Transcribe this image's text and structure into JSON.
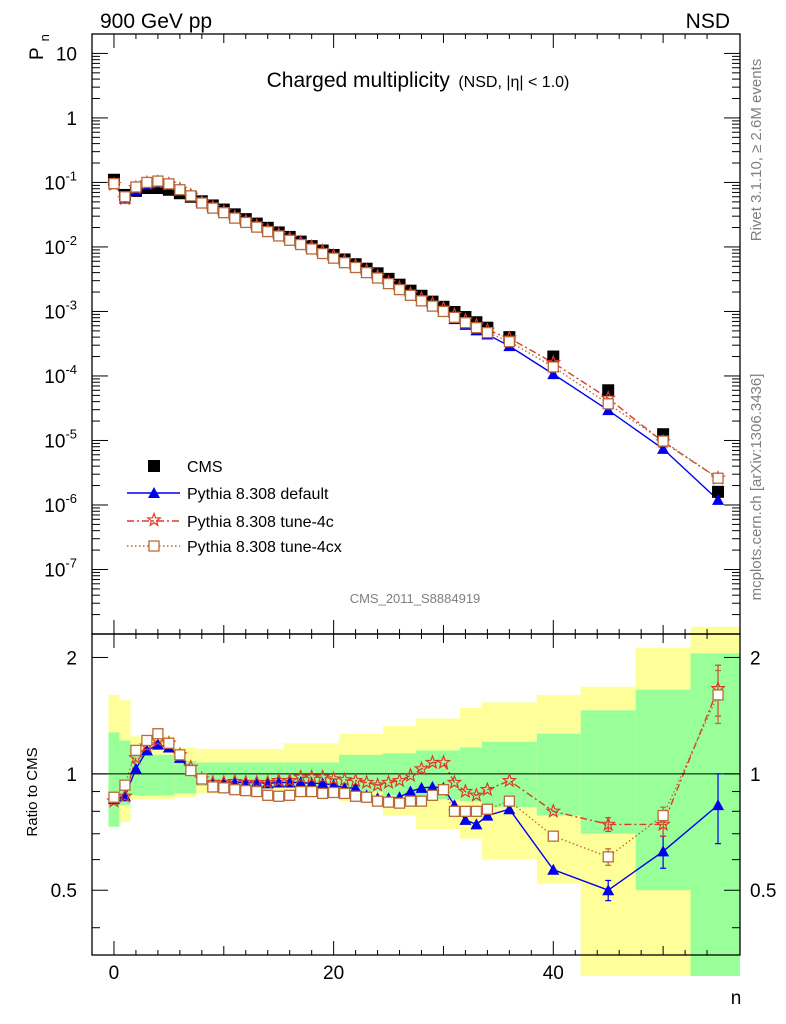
{
  "header": {
    "energy_label": "900 GeV pp",
    "process_label": "NSD",
    "title_main": "Charged multiplicity",
    "title_sub": "(NSD, |η| < 1.0)",
    "rivet_label": "Rivet 3.1.10, ≥ 2.6M events",
    "mcplots_label": "mcplots.cern.ch [arXiv:1306.3436]",
    "analysis_label": "CMS_2011_S8884919"
  },
  "colors": {
    "cms": "#000000",
    "default": "#0000ee",
    "tune4c": "#dd3b2a",
    "tune4cx": "#b86a3a",
    "band_inner": "#99ff99",
    "band_outer": "#ffff99"
  },
  "chart_data": [
    {
      "type": "scatter",
      "scale": "log",
      "ylabel": "P",
      "ylabel_sub": "n",
      "xlim": [
        -2,
        57
      ],
      "ylim": [
        1e-08,
        20
      ],
      "yticks": [
        {
          "v": 1e-07,
          "label": "10",
          "exp": "-7"
        },
        {
          "v": 1e-06,
          "label": "10",
          "exp": "-6"
        },
        {
          "v": 1e-05,
          "label": "10",
          "exp": "-5"
        },
        {
          "v": 0.0001,
          "label": "10",
          "exp": "-4"
        },
        {
          "v": 0.001,
          "label": "10",
          "exp": "-3"
        },
        {
          "v": 0.01,
          "label": "10",
          "exp": "-2"
        },
        {
          "v": 0.1,
          "label": "10",
          "exp": "-1"
        },
        {
          "v": 1,
          "label": "1",
          "exp": ""
        },
        {
          "v": 10,
          "label": "10",
          "exp": ""
        }
      ],
      "legend_position": "bottom-left",
      "series": [
        {
          "name": "CMS",
          "key": "cms",
          "marker": "square",
          "x": [
            0,
            1,
            2,
            3,
            4,
            5,
            6,
            7,
            8,
            9,
            10,
            11,
            12,
            13,
            14,
            15,
            16,
            17,
            18,
            19,
            20,
            21,
            22,
            23,
            24,
            25,
            26,
            27,
            28,
            29,
            30,
            31,
            32,
            33,
            34,
            36,
            40,
            45,
            50,
            55
          ],
          "y": [
            0.11,
            0.064,
            0.074,
            0.082,
            0.082,
            0.077,
            0.068,
            0.06,
            0.051,
            0.044,
            0.038,
            0.032,
            0.027,
            0.023,
            0.0198,
            0.0168,
            0.0143,
            0.0121,
            0.0103,
            0.0088,
            0.0075,
            0.0064,
            0.0054,
            0.0046,
            0.0039,
            0.0032,
            0.0026,
            0.0021,
            0.00175,
            0.00142,
            0.00118,
            0.00098,
            0.00082,
            0.00068,
            0.00056,
            0.0004,
            0.0002,
            6e-05,
            1.25e-05,
            1.6e-06
          ]
        },
        {
          "name": "Pythia 8.308 default",
          "key": "default",
          "marker": "triangle",
          "line": "solid",
          "x": [
            0,
            1,
            2,
            3,
            4,
            5,
            6,
            7,
            8,
            9,
            10,
            11,
            12,
            13,
            14,
            15,
            16,
            17,
            18,
            19,
            20,
            21,
            22,
            23,
            24,
            25,
            26,
            27,
            28,
            29,
            30,
            31,
            32,
            33,
            34,
            36,
            40,
            45,
            50,
            55
          ],
          "y": [
            0.094,
            0.056,
            0.076,
            0.093,
            0.098,
            0.092,
            0.076,
            0.062,
            0.049,
            0.041,
            0.035,
            0.029,
            0.025,
            0.0211,
            0.018,
            0.0153,
            0.0131,
            0.0113,
            0.0096,
            0.0081,
            0.0068,
            0.0057,
            0.0048,
            0.004,
            0.0033,
            0.0027,
            0.00218,
            0.0018,
            0.00148,
            0.0012,
            0.00098,
            0.00076,
            0.00062,
            0.00051,
            0.00044,
            0.00029,
            0.000107,
            2.95e-05,
            7.4e-06,
            1.2e-06
          ]
        },
        {
          "name": "Pythia 8.308 tune-4c",
          "key": "tune4c",
          "marker": "star",
          "line": "dashdot",
          "x": [
            0,
            1,
            2,
            3,
            4,
            5,
            6,
            7,
            8,
            9,
            10,
            11,
            12,
            13,
            14,
            15,
            16,
            17,
            18,
            19,
            20,
            21,
            22,
            23,
            24,
            25,
            26,
            27,
            28,
            29,
            30,
            31,
            32,
            33,
            34,
            36,
            40,
            45,
            50,
            55
          ],
          "y": [
            0.093,
            0.056,
            0.083,
            0.098,
            0.101,
            0.094,
            0.078,
            0.063,
            0.049,
            0.041,
            0.035,
            0.029,
            0.025,
            0.0211,
            0.0182,
            0.0156,
            0.0135,
            0.0117,
            0.01,
            0.0086,
            0.0073,
            0.0061,
            0.0051,
            0.0043,
            0.0035,
            0.0028,
            0.00232,
            0.00188,
            0.0016,
            0.00133,
            0.00112,
            0.00089,
            0.00073,
            0.00061,
            0.00051,
            0.000385,
            0.00016,
            4.5e-05,
            9.5e-06,
            2.6e-06
          ]
        },
        {
          "name": "Pythia 8.308 tune-4cx",
          "key": "tune4cx",
          "marker": "open-square",
          "line": "dotted",
          "x": [
            0,
            1,
            2,
            3,
            4,
            5,
            6,
            7,
            8,
            9,
            10,
            11,
            12,
            13,
            14,
            15,
            16,
            17,
            18,
            19,
            20,
            21,
            22,
            23,
            24,
            25,
            26,
            27,
            28,
            29,
            30,
            31,
            32,
            33,
            34,
            36,
            40,
            45,
            50,
            55
          ],
          "y": [
            0.096,
            0.06,
            0.085,
            0.1,
            0.105,
            0.095,
            0.077,
            0.062,
            0.048,
            0.04,
            0.034,
            0.028,
            0.024,
            0.0203,
            0.0173,
            0.0148,
            0.0127,
            0.0109,
            0.0093,
            0.0079,
            0.0067,
            0.0057,
            0.0048,
            0.004,
            0.0033,
            0.0027,
            0.00218,
            0.00178,
            0.00146,
            0.00121,
            0.001,
            0.00081,
            0.00067,
            0.00056,
            0.00047,
            0.00034,
            0.000138,
            3.7e-05,
            9.8e-06,
            2.6e-06
          ]
        }
      ]
    },
    {
      "type": "line",
      "ylabel": "Ratio to CMS",
      "xlabel": "n",
      "xlim": [
        -2,
        57
      ],
      "ylim": [
        0.34,
        2.3
      ],
      "xticks": [
        0,
        20,
        40
      ],
      "yticks": [
        0.5,
        1,
        2
      ],
      "bands": [
        {
          "x0": -0.5,
          "x1": 0.5,
          "inner": [
            0.73,
            1.28
          ],
          "outer": [
            0.73,
            1.6
          ]
        },
        {
          "x0": 0.5,
          "x1": 1.5,
          "inner": [
            0.83,
            1.22
          ],
          "outer": [
            0.75,
            1.55
          ]
        },
        {
          "x0": 1.5,
          "x1": 5.5,
          "inner": [
            0.88,
            1.12
          ],
          "outer": [
            0.86,
            1.25
          ]
        },
        {
          "x0": 5.5,
          "x1": 7.5,
          "inner": [
            0.89,
            1.08
          ],
          "outer": [
            0.87,
            1.17
          ]
        },
        {
          "x0": 7.5,
          "x1": 15.5,
          "inner": [
            0.93,
            1.07
          ],
          "outer": [
            0.89,
            1.16
          ]
        },
        {
          "x0": 15.5,
          "x1": 20.5,
          "inner": [
            0.93,
            1.07
          ],
          "outer": [
            0.89,
            1.2
          ]
        },
        {
          "x0": 20.5,
          "x1": 24.5,
          "inner": [
            0.9,
            1.12
          ],
          "outer": [
            0.85,
            1.27
          ]
        },
        {
          "x0": 24.5,
          "x1": 27.5,
          "inner": [
            0.88,
            1.13
          ],
          "outer": [
            0.78,
            1.33
          ]
        },
        {
          "x0": 27.5,
          "x1": 31.5,
          "inner": [
            0.86,
            1.15
          ],
          "outer": [
            0.72,
            1.39
          ]
        },
        {
          "x0": 31.5,
          "x1": 33.5,
          "inner": [
            0.85,
            1.17
          ],
          "outer": [
            0.68,
            1.48
          ]
        },
        {
          "x0": 33.5,
          "x1": 38.5,
          "inner": [
            0.82,
            1.21
          ],
          "outer": [
            0.6,
            1.53
          ]
        },
        {
          "x0": 38.5,
          "x1": 42.5,
          "inner": [
            0.78,
            1.27
          ],
          "outer": [
            0.52,
            1.6
          ]
        },
        {
          "x0": 42.5,
          "x1": 47.5,
          "inner": [
            0.7,
            1.46
          ],
          "outer": [
            0.3,
            1.68
          ]
        },
        {
          "x0": 47.5,
          "x1": 52.5,
          "inner": [
            0.5,
            1.65
          ],
          "outer": [
            0.3,
            2.12
          ]
        },
        {
          "x0": 52.5,
          "x1": 57,
          "inner": [
            0.3,
            2.05
          ],
          "outer": [
            0.3,
            2.4
          ]
        }
      ],
      "series": [
        {
          "name": "Pythia 8.308 default",
          "key": "default",
          "x": [
            0,
            1,
            2,
            3,
            4,
            5,
            6,
            7,
            8,
            9,
            10,
            11,
            12,
            13,
            14,
            15,
            16,
            17,
            18,
            19,
            20,
            21,
            22,
            23,
            24,
            25,
            26,
            27,
            28,
            29,
            30,
            31,
            32,
            33,
            34,
            36,
            40,
            45,
            50,
            55
          ],
          "y": [
            0.86,
            0.875,
            1.03,
            1.15,
            1.19,
            1.17,
            1.1,
            1.02,
            0.97,
            0.94,
            0.95,
            0.95,
            0.95,
            0.95,
            0.945,
            0.95,
            0.95,
            0.95,
            0.945,
            0.945,
            0.935,
            0.92,
            0.92,
            0.88,
            0.865,
            0.865,
            0.87,
            0.9,
            0.92,
            0.925,
            0.92,
            0.83,
            0.76,
            0.74,
            0.78,
            0.81,
            0.565,
            0.5,
            0.63,
            0.83
          ],
          "err": [
            0,
            0,
            0,
            0,
            0,
            0,
            0,
            0,
            0,
            0,
            0,
            0,
            0,
            0,
            0,
            0,
            0,
            0,
            0,
            0,
            0,
            0,
            0,
            0,
            0,
            0,
            0,
            0,
            0,
            0,
            0,
            0,
            0,
            0,
            0,
            0,
            0,
            0.03,
            0.06,
            0.17
          ]
        },
        {
          "name": "Pythia 8.308 tune-4c",
          "key": "tune4c",
          "x": [
            0,
            1,
            2,
            3,
            4,
            5,
            6,
            7,
            8,
            9,
            10,
            11,
            12,
            13,
            14,
            15,
            16,
            17,
            18,
            19,
            20,
            21,
            22,
            23,
            24,
            25,
            26,
            27,
            28,
            29,
            30,
            31,
            32,
            33,
            34,
            36,
            40,
            45,
            50,
            55
          ],
          "y": [
            0.85,
            0.875,
            1.1,
            1.18,
            1.22,
            1.2,
            1.12,
            1.04,
            0.97,
            0.95,
            0.95,
            0.955,
            0.95,
            0.95,
            0.95,
            0.96,
            0.96,
            0.98,
            0.98,
            0.98,
            0.97,
            0.965,
            0.96,
            0.95,
            0.935,
            0.95,
            0.96,
            0.99,
            1.03,
            1.07,
            1.07,
            0.95,
            0.9,
            0.88,
            0.91,
            0.96,
            0.8,
            0.74,
            0.74,
            1.66
          ],
          "err": [
            0,
            0,
            0,
            0,
            0,
            0,
            0,
            0,
            0,
            0,
            0,
            0,
            0,
            0,
            0,
            0,
            0,
            0,
            0,
            0,
            0,
            0,
            0,
            0,
            0,
            0,
            0,
            0,
            0,
            0,
            0,
            0,
            0,
            0,
            0,
            0,
            0,
            0.03,
            0.05,
            0.25
          ]
        },
        {
          "name": "Pythia 8.308 tune-4cx",
          "key": "tune4cx",
          "x": [
            0,
            1,
            2,
            3,
            4,
            5,
            6,
            7,
            8,
            9,
            10,
            11,
            12,
            13,
            14,
            15,
            16,
            17,
            18,
            19,
            20,
            21,
            22,
            23,
            24,
            25,
            26,
            27,
            28,
            29,
            30,
            31,
            32,
            33,
            34,
            36,
            40,
            45,
            50,
            55
          ],
          "y": [
            0.87,
            0.935,
            1.15,
            1.22,
            1.27,
            1.2,
            1.12,
            1.02,
            0.97,
            0.925,
            0.92,
            0.91,
            0.905,
            0.9,
            0.88,
            0.875,
            0.88,
            0.9,
            0.9,
            0.89,
            0.895,
            0.89,
            0.875,
            0.87,
            0.85,
            0.845,
            0.84,
            0.85,
            0.85,
            0.88,
            0.91,
            0.8,
            0.8,
            0.8,
            0.81,
            0.85,
            0.69,
            0.61,
            0.78,
            1.6
          ],
          "err": [
            0,
            0,
            0,
            0,
            0,
            0,
            0,
            0,
            0,
            0,
            0,
            0,
            0,
            0,
            0,
            0,
            0,
            0,
            0,
            0,
            0,
            0,
            0,
            0,
            0,
            0,
            0,
            0,
            0,
            0,
            0,
            0,
            0,
            0,
            0,
            0,
            0,
            0.03,
            0.04,
            0.25
          ]
        }
      ]
    }
  ]
}
